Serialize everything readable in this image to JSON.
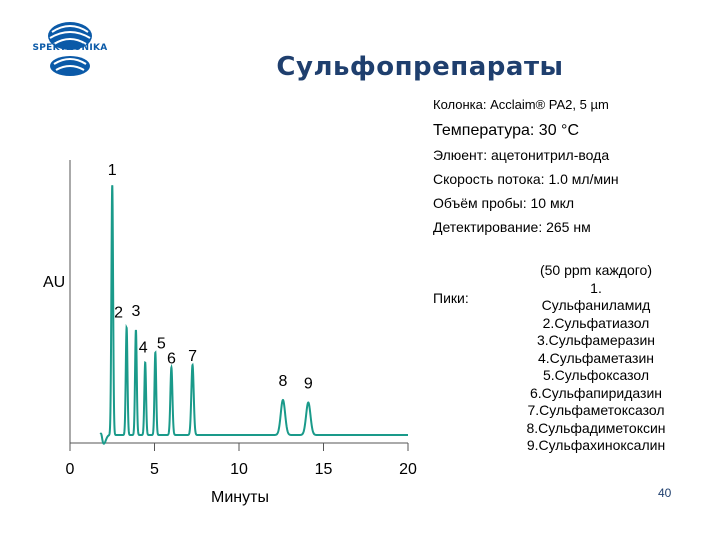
{
  "logo": {
    "text": "SPEKTRONIKA"
  },
  "title": "Сульфопрепараты",
  "conditions": {
    "column": "Колонка: Acclaim® PA2, 5 µm",
    "temperature": "Температура: 30 °C",
    "eluent": "Элюент: ацетонитрил-вода",
    "flow": "Скорость потока: 1.0 мл/мин",
    "volume": "Объём пробы: 10 мкл",
    "detection": "Детектирование: 265 нм"
  },
  "peaks_legend": {
    "label": "Пики:",
    "note": "(50 ppm каждого)",
    "items": [
      "1.",
      "Сульфаниламид",
      "2.Сульфатиазол",
      "3.Сульфамеразин",
      "4.Сульфаметазин",
      "5.Сульфоксазол",
      "6.Сульфапиридазин",
      "7.Сульфаметоксазол",
      "8.Сульфадиметоксин",
      "9.Сульфахиноксалин"
    ]
  },
  "page_number": "40",
  "chart_data": {
    "type": "line",
    "title": "",
    "xlabel": "Минуты",
    "ylabel": "AU",
    "xlim": [
      0,
      20
    ],
    "x_ticks": [
      0,
      5,
      10,
      15,
      20
    ],
    "x_tick_labels": [
      "0",
      "5",
      "10",
      "15",
      "20"
    ],
    "baseline": 0.0,
    "line_color": "#1a9a8a",
    "grid": false,
    "peaks": [
      {
        "label": "1",
        "time": 2.5,
        "height": 1.0,
        "width": 0.05
      },
      {
        "label": "2",
        "time": 3.35,
        "height": 0.43,
        "width": 0.05
      },
      {
        "label": "3",
        "time": 3.9,
        "height": 0.42,
        "width": 0.05
      },
      {
        "label": "4",
        "time": 4.45,
        "height": 0.29,
        "width": 0.05
      },
      {
        "label": "5",
        "time": 5.05,
        "height": 0.33,
        "width": 0.05
      },
      {
        "label": "6",
        "time": 6.0,
        "height": 0.27,
        "width": 0.06
      },
      {
        "label": "7",
        "time": 7.25,
        "height": 0.28,
        "width": 0.07
      },
      {
        "label": "8",
        "time": 12.6,
        "height": 0.14,
        "width": 0.13
      },
      {
        "label": "9",
        "time": 14.1,
        "height": 0.13,
        "width": 0.13
      }
    ]
  }
}
